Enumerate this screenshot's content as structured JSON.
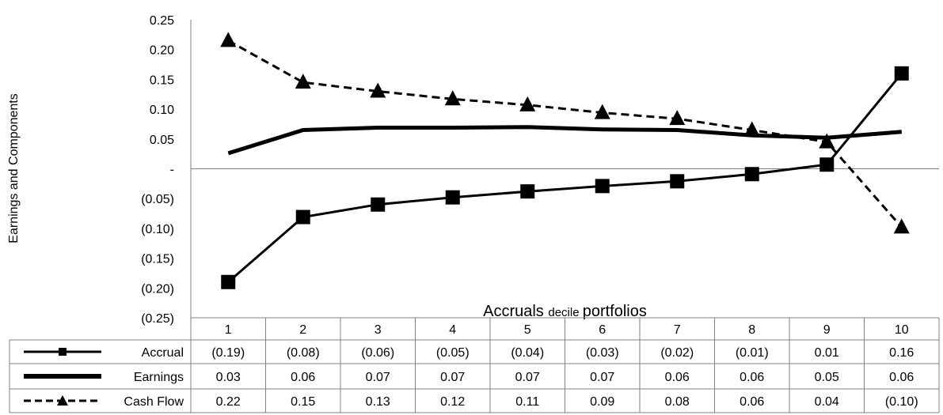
{
  "chart_data": {
    "type": "line",
    "ylabel": "Earnings and Components",
    "xlabel_main": "Accruals",
    "xlabel_small": "decile",
    "xlabel_tail": "portfolios",
    "categories": [
      "1",
      "2",
      "3",
      "4",
      "5",
      "6",
      "7",
      "8",
      "9",
      "10"
    ],
    "ylim": [
      -0.25,
      0.25
    ],
    "yticks": [
      {
        "value": 0.25,
        "label": "0.25"
      },
      {
        "value": 0.2,
        "label": "0.20"
      },
      {
        "value": 0.15,
        "label": "0.15"
      },
      {
        "value": 0.1,
        "label": "0.10"
      },
      {
        "value": 0.05,
        "label": "0.05"
      },
      {
        "value": 0.0,
        "label": "-"
      },
      {
        "value": -0.05,
        "label": "(0.05)"
      },
      {
        "value": -0.1,
        "label": "(0.10)"
      },
      {
        "value": -0.15,
        "label": "(0.15)"
      },
      {
        "value": -0.2,
        "label": "(0.20)"
      },
      {
        "value": -0.25,
        "label": "(0.25)"
      }
    ],
    "grid": false,
    "legend": "data-table-below",
    "series": [
      {
        "name": "Accrual",
        "style": "solid-square-markers",
        "values": [
          -0.19,
          -0.081,
          -0.06,
          -0.048,
          -0.038,
          -0.029,
          -0.021,
          -0.009,
          0.007,
          0.16
        ],
        "table_labels": [
          "(0.19)",
          "(0.08)",
          "(0.06)",
          "(0.05)",
          "(0.04)",
          "(0.03)",
          "(0.02)",
          "(0.01)",
          "0.01",
          "0.16"
        ]
      },
      {
        "name": "Earnings",
        "style": "thick-solid",
        "values": [
          0.026,
          0.065,
          0.069,
          0.069,
          0.07,
          0.066,
          0.065,
          0.056,
          0.052,
          0.062
        ],
        "table_labels": [
          "0.03",
          "0.06",
          "0.07",
          "0.07",
          "0.07",
          "0.07",
          "0.06",
          "0.06",
          "0.05",
          "0.06"
        ]
      },
      {
        "name": "Cash Flow",
        "style": "dashed-triangle-markers",
        "values": [
          0.215,
          0.145,
          0.13,
          0.117,
          0.107,
          0.094,
          0.084,
          0.065,
          0.045,
          -0.098
        ],
        "table_labels": [
          "0.22",
          "0.15",
          "0.13",
          "0.12",
          "0.11",
          "0.09",
          "0.08",
          "0.06",
          "0.04",
          "(0.10)"
        ]
      }
    ],
    "colors": {
      "line": "#000000",
      "axis": "#808080",
      "grid_table": "#808080"
    }
  }
}
